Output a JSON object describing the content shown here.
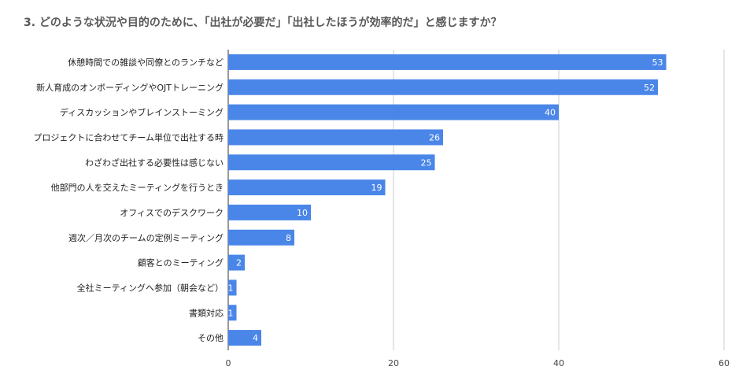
{
  "chart_data": {
    "type": "bar",
    "orientation": "horizontal",
    "title": "3. どのような状況や目的のために、「出社が必要だ」「出社したほうが効率的だ」と感じますか？",
    "categories": [
      "休憩時間での雑談や同僚とのランチなど",
      "新人育成のオンボーディングやOJTトレーニング",
      "ディスカッションやブレインストーミング",
      "プロジェクトに合わせてチーム単位で出社する時",
      "わざわざ出社する必要性は感じない",
      "他部門の人を交えたミーティングを行うとき",
      "オフィスでのデスクワーク",
      "週次／月次のチームの定例ミーティング",
      "顧客とのミーティング",
      "全社ミーティングへ参加（朝会など）",
      "書類対応",
      "その他"
    ],
    "values": [
      53,
      52,
      40,
      26,
      25,
      19,
      10,
      8,
      2,
      1,
      1,
      4
    ],
    "xlim": [
      0,
      60
    ],
    "xticks": [
      0,
      20,
      40,
      60
    ],
    "xlabel": "",
    "ylabel": "",
    "grid": true,
    "bar_color": "#4a86e8"
  }
}
